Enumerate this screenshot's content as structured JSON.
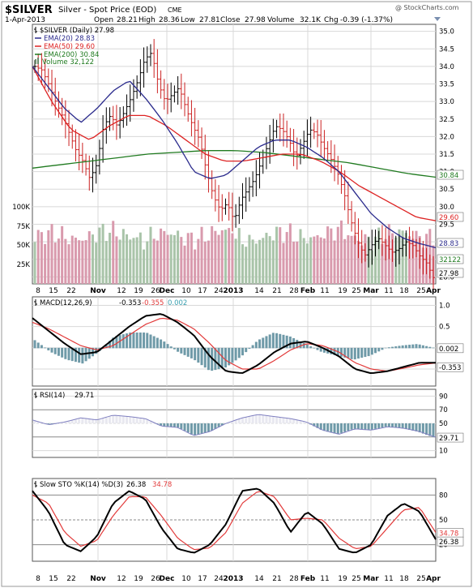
{
  "header": {
    "symbol": "$SILVER",
    "description": "Silver - Spot Price (EOD)",
    "exchange": "CME",
    "watermark": "@ StockCharts.com",
    "date": "1-Apr-2013",
    "open_label": "Open",
    "open": "28.21",
    "high_label": "High",
    "high": "28.36",
    "low_label": "Low",
    "low": "27.81",
    "close_label": "Close",
    "close": "27.98",
    "volume_label": "Volume",
    "volume": "32.1K",
    "chg_label": "Chg",
    "chg": "-0.39 (-1.37%)"
  },
  "legend": {
    "price": "$SILVER (Daily) 27.98",
    "ema20": "EMA(20) 28.83",
    "ema50": "EMA(50) 29.60",
    "ema200": "EMA(200) 30.84",
    "volume": "Volume 32,122"
  },
  "price_axis": [
    "35.0",
    "34.5",
    "34.0",
    "33.5",
    "33.0",
    "32.5",
    "32.0",
    "31.5",
    "31.0",
    "30.5",
    "30.0",
    "29.5",
    "29.0",
    "28.5",
    "28.0"
  ],
  "volume_axis": [
    "100K",
    "75K",
    "50K",
    "25K"
  ],
  "price_tags": {
    "ema200": "30.84",
    "ema50": "29.60",
    "ema20": "28.83",
    "volume": "32122",
    "close": "27.98"
  },
  "x_labels": [
    "8",
    "15",
    "22",
    "Nov",
    "12",
    "19",
    "26",
    "Dec",
    "10",
    "17",
    "24",
    "2013",
    "14",
    "21",
    "28",
    "Feb",
    "11",
    "19",
    "25",
    "Mar",
    "11",
    "18",
    "25",
    "Apr"
  ],
  "macd": {
    "title": "MACD(12,26,9)",
    "macd_value": "-0.353",
    "signal_value": "-0.355",
    "hist_value": "0.002",
    "axis": [
      "1.0",
      "0.5",
      "0.0",
      "-0.5"
    ],
    "tags": {
      "hist": "0.002",
      "macd": "-0.353"
    }
  },
  "rsi": {
    "title": "RSI(14)",
    "value": "29.71",
    "axis": [
      "90",
      "70",
      "50",
      "30",
      "10"
    ],
    "tag": "29.71"
  },
  "sto": {
    "title": "Slow STO %K(14) %D(3)",
    "k_value": "26.38",
    "d_value": "34.78",
    "axis": [
      "80",
      "50",
      "20"
    ],
    "tags": {
      "d": "34.78",
      "k": "26.38"
    }
  },
  "colors": {
    "ema20": "#2a2a8c",
    "ema50": "#dd2222",
    "ema200": "#1f7a1f",
    "up_bar": "#000000",
    "down_bar": "#cc2222",
    "vol_up": "#a9c4a9",
    "vol_down": "#d99aad",
    "hist": "#6f9aa8",
    "macd_line": "#000000",
    "signal_line": "#e23a3a",
    "rsi_line": "#8080c0",
    "sto_k": "#000000",
    "sto_d": "#e23a3a"
  },
  "chart_data": [
    {
      "type": "line",
      "title": "$SILVER (Daily)",
      "ylim": [
        27.8,
        35.2
      ],
      "anchors_x": [
        "8",
        "Nov",
        "Dec",
        "24",
        "2013",
        "Feb",
        "19",
        "Mar",
        "Apr"
      ],
      "close_path": [
        34.0,
        33.9,
        33.5,
        33.0,
        32.6,
        32.1,
        31.6,
        31.3,
        30.8,
        31.2,
        32.3,
        32.6,
        32.3,
        32.7,
        33.1,
        33.6,
        34.2,
        34.4,
        33.5,
        33.0,
        33.2,
        33.4,
        32.8,
        32.3,
        31.9,
        31.0,
        30.3,
        29.9,
        30.1,
        29.6,
        30.2,
        30.5,
        30.8,
        31.3,
        31.8,
        32.3,
        32.2,
        31.9,
        31.4,
        31.8,
        32.2,
        32.1,
        31.7,
        31.4,
        31.0,
        30.4,
        29.6,
        29.0,
        28.6,
        28.9,
        29.1,
        28.9,
        28.7,
        28.8,
        29.0,
        28.9,
        28.6,
        28.4,
        27.98
      ],
      "ema20": [
        34.0,
        33.4,
        32.8,
        32.4,
        32.8,
        33.3,
        33.6,
        33.1,
        32.5,
        31.8,
        31.0,
        30.8,
        30.9,
        31.3,
        31.7,
        31.9,
        31.9,
        31.7,
        31.4,
        31.0,
        30.4,
        29.8,
        29.4,
        29.1,
        28.95,
        28.83
      ],
      "ema50": [
        34.0,
        33.0,
        32.2,
        31.9,
        32.3,
        32.6,
        32.6,
        32.3,
        31.9,
        31.5,
        31.3,
        31.3,
        31.4,
        31.5,
        31.5,
        31.3,
        31.0,
        30.6,
        30.3,
        30.0,
        29.7,
        29.6
      ],
      "ema200": [
        31.1,
        31.2,
        31.3,
        31.4,
        31.5,
        31.55,
        31.6,
        31.6,
        31.55,
        31.45,
        31.35,
        31.25,
        31.1,
        30.95,
        30.84
      ],
      "volume_last": 32122
    },
    {
      "type": "line",
      "title": "MACD(12,26,9)",
      "ylim": [
        -0.9,
        1.2
      ],
      "series": [
        {
          "name": "MACD",
          "values": [
            0.7,
            0.4,
            0.1,
            -0.15,
            -0.1,
            0.2,
            0.5,
            0.75,
            0.8,
            0.6,
            0.3,
            -0.2,
            -0.55,
            -0.6,
            -0.4,
            -0.1,
            0.1,
            0.15,
            0.0,
            -0.2,
            -0.5,
            -0.6,
            -0.55,
            -0.45,
            -0.35,
            -0.353
          ]
        },
        {
          "name": "Signal",
          "values": [
            0.6,
            0.45,
            0.25,
            0.05,
            -0.05,
            0.05,
            0.3,
            0.55,
            0.7,
            0.65,
            0.45,
            0.1,
            -0.3,
            -0.5,
            -0.5,
            -0.3,
            -0.05,
            0.1,
            0.05,
            -0.1,
            -0.35,
            -0.5,
            -0.55,
            -0.48,
            -0.4,
            -0.355
          ]
        }
      ]
    },
    {
      "type": "line",
      "title": "RSI(14)",
      "ylim": [
        0,
        100
      ],
      "series": [
        {
          "name": "RSI",
          "values": [
            55,
            48,
            52,
            58,
            55,
            62,
            60,
            57,
            46,
            44,
            32,
            38,
            50,
            58,
            63,
            60,
            57,
            52,
            40,
            34,
            42,
            40,
            45,
            43,
            38,
            29.71
          ]
        }
      ]
    },
    {
      "type": "line",
      "title": "Slow STO %K(14) %D(3)",
      "ylim": [
        0,
        100
      ],
      "series": [
        {
          "name": "%K",
          "values": [
            85,
            60,
            20,
            12,
            30,
            70,
            85,
            75,
            40,
            15,
            10,
            20,
            45,
            85,
            88,
            70,
            35,
            60,
            45,
            15,
            10,
            20,
            55,
            70,
            60,
            26.38
          ]
        },
        {
          "name": "%D",
          "values": [
            80,
            70,
            35,
            18,
            25,
            55,
            78,
            78,
            55,
            28,
            14,
            16,
            35,
            70,
            85,
            78,
            50,
            52,
            50,
            28,
            15,
            18,
            40,
            62,
            65,
            34.78
          ]
        }
      ]
    }
  ]
}
